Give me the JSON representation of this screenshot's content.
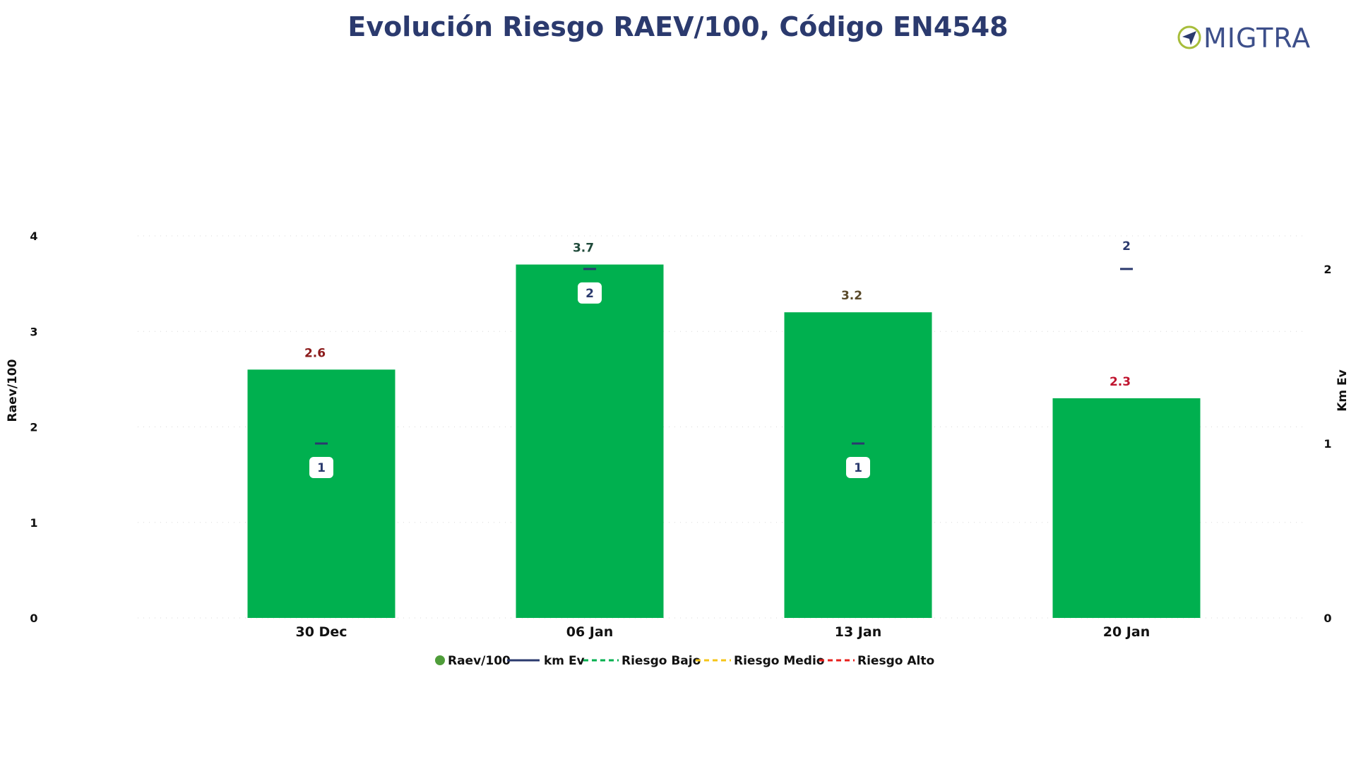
{
  "title": "Evolución Riesgo RAEV/100, Código EN4548",
  "logo": {
    "text": "MIGTRA",
    "icon": "compass-arrow-icon",
    "text_color": "#3d4f8a",
    "ring_color": "#a7bd3a"
  },
  "chart_data": {
    "type": "bar",
    "categories": [
      "30 Dec",
      "06 Jan",
      "13 Jan",
      "20 Jan"
    ],
    "series": [
      {
        "name": "Raev/100",
        "type": "bar",
        "axis": "left",
        "values": [
          2.6,
          3.7,
          3.2,
          2.3
        ],
        "labels": [
          "2.6",
          "3.7",
          "3.2",
          "2.3"
        ],
        "color": "#00b04f",
        "label_colors": [
          "#8b1a1a",
          "#1f4a3a",
          "#5a4a2a",
          "#c0152f"
        ]
      },
      {
        "name": "km Ev",
        "type": "line",
        "axis": "right",
        "values": [
          1,
          2,
          1,
          2
        ],
        "labels": [
          "1",
          "2",
          "1",
          "2"
        ],
        "color": "#2b3a6e"
      }
    ],
    "reference_lines": [
      {
        "name": "Riesgo Bajo",
        "color": "#00b04f",
        "style": "dashed"
      },
      {
        "name": "Riesgo Medio",
        "color": "#f5c518",
        "style": "dashed"
      },
      {
        "name": "Riesgo Alto",
        "color": "#e8201c",
        "style": "dashed"
      }
    ],
    "ylabel": "Raev/100",
    "y2label": "Km Ev",
    "ylim": [
      0,
      4
    ],
    "y2lim": [
      0,
      2.19
    ],
    "yticks": [
      "0",
      "1",
      "2",
      "3",
      "4"
    ],
    "y2ticks": [
      "0",
      "1",
      "2"
    ],
    "grid": "horizontal-dotted",
    "legend": "bottom-center"
  }
}
